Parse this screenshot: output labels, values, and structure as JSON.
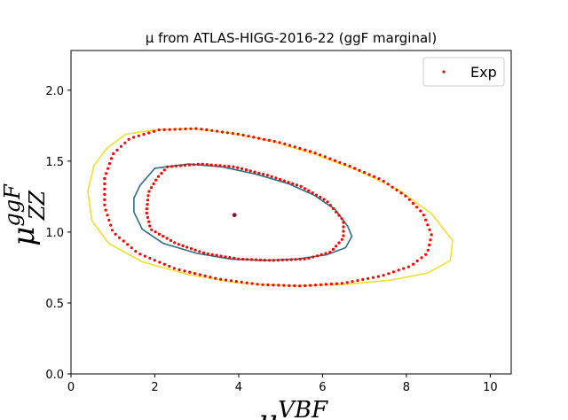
{
  "chart_data": {
    "type": "scatter",
    "title": "μ from ATLAS-HIGG-2016-22 (ggF marginal)",
    "xlabel": {
      "base": "μ",
      "sup": "VBF"
    },
    "ylabel": {
      "base": "μ",
      "sup": "ggF",
      "sub": "ZZ"
    },
    "xlim": [
      0,
      10.5
    ],
    "ylim": [
      0,
      2.28
    ],
    "xticks": [
      "0",
      "2",
      "4",
      "6",
      "8",
      "10"
    ],
    "xtick_values": [
      0,
      2,
      4,
      6,
      8,
      10
    ],
    "yticks": [
      "0.0",
      "0.5",
      "1.0",
      "1.5",
      "2.0"
    ],
    "ytick_values": [
      0,
      0.5,
      1.0,
      1.5,
      2.0
    ],
    "grid": false,
    "legend": {
      "position": "top-right",
      "entries": [
        {
          "label": "Exp",
          "color": "#ff0000",
          "marker": "dot"
        }
      ]
    },
    "best_fit": {
      "x": 3.9,
      "y": 1.12,
      "color": "#1f1f8f"
    },
    "contours": [
      {
        "color": "#2c6f86",
        "points": [
          [
            2.0,
            1.45
          ],
          [
            2.8,
            1.48
          ],
          [
            3.6,
            1.46
          ],
          [
            4.4,
            1.41
          ],
          [
            5.2,
            1.34
          ],
          [
            5.8,
            1.26
          ],
          [
            6.3,
            1.16
          ],
          [
            6.6,
            1.04
          ],
          [
            6.7,
            0.97
          ],
          [
            6.55,
            0.89
          ],
          [
            6.1,
            0.84
          ],
          [
            5.4,
            0.81
          ],
          [
            4.6,
            0.8
          ],
          [
            3.8,
            0.81
          ],
          [
            3.0,
            0.85
          ],
          [
            2.2,
            0.92
          ],
          [
            1.7,
            1.02
          ],
          [
            1.5,
            1.14
          ],
          [
            1.5,
            1.24
          ],
          [
            1.65,
            1.33
          ],
          [
            2.0,
            1.45
          ]
        ]
      },
      {
        "color": "#f2e02a",
        "points": [
          [
            1.3,
            1.69
          ],
          [
            2.0,
            1.72
          ],
          [
            2.8,
            1.73
          ],
          [
            3.8,
            1.7
          ],
          [
            4.8,
            1.64
          ],
          [
            5.8,
            1.55
          ],
          [
            6.8,
            1.44
          ],
          [
            7.8,
            1.3
          ],
          [
            8.6,
            1.13
          ],
          [
            9.1,
            0.94
          ],
          [
            9.05,
            0.8
          ],
          [
            8.5,
            0.71
          ],
          [
            7.6,
            0.66
          ],
          [
            6.5,
            0.63
          ],
          [
            5.3,
            0.62
          ],
          [
            4.0,
            0.64
          ],
          [
            2.8,
            0.7
          ],
          [
            1.7,
            0.79
          ],
          [
            0.9,
            0.92
          ],
          [
            0.5,
            1.08
          ],
          [
            0.4,
            1.29
          ],
          [
            0.55,
            1.47
          ],
          [
            0.85,
            1.59
          ],
          [
            1.3,
            1.69
          ]
        ]
      }
    ],
    "series": [
      {
        "name": "Exp",
        "color": "#ff0000",
        "marker": "dot",
        "rings": [
          {
            "points": [
              [
                2.3,
                1.46
              ],
              [
                3.1,
                1.48
              ],
              [
                3.9,
                1.46
              ],
              [
                4.7,
                1.4
              ],
              [
                5.5,
                1.32
              ],
              [
                6.1,
                1.22
              ],
              [
                6.5,
                1.08
              ],
              [
                6.5,
                0.96
              ],
              [
                6.2,
                0.86
              ],
              [
                5.6,
                0.81
              ],
              [
                4.8,
                0.8
              ],
              [
                4.0,
                0.81
              ],
              [
                3.2,
                0.85
              ],
              [
                2.5,
                0.92
              ],
              [
                1.9,
                1.02
              ],
              [
                1.8,
                1.14
              ],
              [
                1.85,
                1.28
              ],
              [
                2.05,
                1.38
              ],
              [
                2.3,
                1.46
              ]
            ],
            "n": 110
          },
          {
            "points": [
              [
                2.1,
                1.72
              ],
              [
                3.0,
                1.73
              ],
              [
                4.0,
                1.69
              ],
              [
                5.0,
                1.63
              ],
              [
                5.8,
                1.56
              ],
              [
                6.6,
                1.47
              ],
              [
                7.4,
                1.37
              ],
              [
                8.0,
                1.25
              ],
              [
                8.4,
                1.13
              ],
              [
                8.6,
                0.98
              ],
              [
                8.5,
                0.85
              ],
              [
                8.1,
                0.76
              ],
              [
                7.4,
                0.69
              ],
              [
                6.5,
                0.64
              ],
              [
                5.5,
                0.62
              ],
              [
                4.5,
                0.63
              ],
              [
                3.5,
                0.67
              ],
              [
                2.5,
                0.74
              ],
              [
                1.6,
                0.85
              ],
              [
                1.0,
                1.0
              ],
              [
                0.8,
                1.18
              ],
              [
                0.8,
                1.38
              ],
              [
                1.0,
                1.55
              ],
              [
                1.4,
                1.66
              ],
              [
                2.1,
                1.72
              ]
            ],
            "n": 150
          }
        ]
      }
    ]
  }
}
